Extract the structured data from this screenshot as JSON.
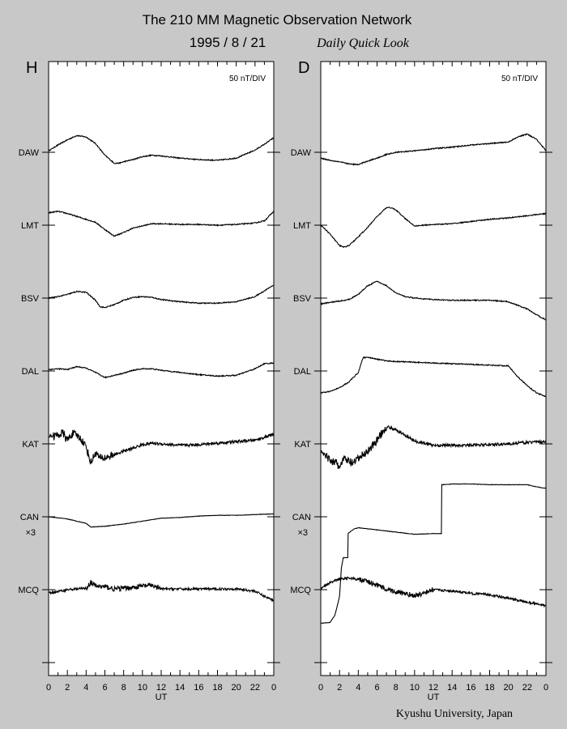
{
  "title": "The 210 MM Magnetic Observation Network",
  "date": "1995 /  8 / 21",
  "subtitle": "Daily Quick Look",
  "footer": "Kyushu University, Japan",
  "colors": {
    "background": "#c8c8c8",
    "panel": "#ffffff",
    "trace": "#000000"
  },
  "chart_data": [
    {
      "type": "line",
      "panel": "H",
      "scale_label": "50 nT/DIV",
      "xlabel": "UT",
      "x_ticks": [
        "0",
        "2",
        "4",
        "6",
        "8",
        "10",
        "12",
        "14",
        "16",
        "18",
        "20",
        "22",
        "0"
      ],
      "xlim": [
        0,
        24
      ],
      "grid": false,
      "stations": [
        {
          "name": "DAW",
          "note": "",
          "x": [
            0,
            1,
            2,
            3,
            4,
            5,
            6,
            7,
            7.5,
            8,
            9,
            10,
            11,
            12,
            14,
            16,
            18,
            20,
            22,
            23,
            24
          ],
          "y": [
            0.2,
            1.0,
            1.7,
            2.3,
            2.1,
            1.2,
            -0.4,
            -1.5,
            -1.5,
            -1.3,
            -1.0,
            -0.6,
            -0.4,
            -0.5,
            -0.8,
            -1.0,
            -1.1,
            -0.8,
            0.3,
            1.1,
            2.0
          ]
        },
        {
          "name": "LMT",
          "note": "",
          "x": [
            0,
            1,
            2,
            3,
            4,
            5,
            6,
            7,
            8,
            9,
            10,
            11,
            12,
            14,
            16,
            18,
            20,
            22,
            23,
            24
          ],
          "y": [
            1.7,
            1.9,
            1.6,
            1.2,
            0.8,
            0.4,
            -0.6,
            -1.5,
            -1.0,
            -0.4,
            -0.1,
            0.2,
            0.2,
            0.1,
            0.1,
            0.0,
            0.1,
            0.3,
            0.6,
            1.9
          ]
        },
        {
          "name": "BSV",
          "note": "",
          "x": [
            0,
            1,
            2,
            3,
            4,
            5,
            5.5,
            6,
            7,
            8,
            9,
            10,
            11,
            12,
            14,
            16,
            18,
            20,
            22,
            23,
            24
          ],
          "y": [
            0.0,
            0.2,
            0.5,
            0.9,
            0.8,
            -0.3,
            -1.2,
            -1.3,
            -0.9,
            -0.3,
            0.1,
            0.2,
            0.1,
            -0.2,
            -0.5,
            -0.7,
            -0.7,
            -0.5,
            0.2,
            1.0,
            1.8
          ]
        },
        {
          "name": "DAL",
          "note": "",
          "x": [
            0,
            1,
            2,
            3,
            4,
            5,
            6,
            7,
            8,
            9,
            10,
            11,
            12,
            14,
            16,
            18,
            20,
            22,
            23,
            24
          ],
          "y": [
            0.2,
            0.3,
            0.2,
            0.6,
            0.4,
            -0.2,
            -0.9,
            -0.6,
            -0.3,
            0.1,
            0.3,
            0.3,
            0.1,
            -0.2,
            -0.5,
            -0.7,
            -0.6,
            0.3,
            1.0,
            1.1
          ]
        },
        {
          "name": "KAT",
          "note": "",
          "x": [
            0,
            1,
            1.5,
            2,
            2.5,
            3,
            3.5,
            4,
            4.5,
            5,
            5.5,
            6,
            7,
            8,
            9,
            10,
            11,
            12,
            14,
            16,
            18,
            20,
            22,
            23,
            24
          ],
          "y": [
            1.0,
            1.2,
            1.5,
            0.5,
            1.4,
            1.2,
            0.6,
            -0.4,
            -2.6,
            -1.2,
            -2.0,
            -1.9,
            -1.5,
            -1.0,
            -0.6,
            -0.1,
            0.1,
            0.0,
            -0.2,
            -0.1,
            0.1,
            0.3,
            0.5,
            0.9,
            1.3
          ]
        },
        {
          "name": "CAN",
          "note": "×3",
          "x": [
            0,
            2,
            4,
            4.5,
            6,
            8,
            10,
            12,
            14,
            16,
            18,
            20,
            22,
            24
          ],
          "y": [
            0.0,
            -0.3,
            -0.9,
            -1.4,
            -1.3,
            -1.0,
            -0.6,
            -0.2,
            -0.1,
            0.1,
            0.2,
            0.2,
            0.3,
            0.4
          ]
        },
        {
          "name": "MCQ",
          "note": "",
          "x": [
            0,
            2,
            4,
            4.5,
            5,
            6,
            7,
            8,
            9,
            10,
            11,
            12,
            14,
            16,
            18,
            20,
            22,
            23,
            24
          ],
          "y": [
            -0.5,
            0.0,
            0.2,
            1.0,
            0.5,
            0.4,
            0.1,
            0.2,
            0.3,
            0.5,
            0.6,
            0.1,
            0.1,
            0.1,
            0.1,
            0.1,
            -0.2,
            -0.9,
            -1.5
          ]
        }
      ]
    },
    {
      "type": "line",
      "panel": "D",
      "scale_label": "50 nT/DIV",
      "xlabel": "UT",
      "x_ticks": [
        "0",
        "2",
        "4",
        "6",
        "8",
        "10",
        "12",
        "14",
        "16",
        "18",
        "20",
        "22",
        "0"
      ],
      "xlim": [
        0,
        24
      ],
      "grid": false,
      "stations": [
        {
          "name": "DAW",
          "note": "",
          "x": [
            0,
            1,
            2,
            3,
            4,
            5,
            6,
            7,
            8,
            9,
            10,
            12,
            14,
            16,
            18,
            20,
            21,
            22,
            23,
            24
          ],
          "y": [
            -0.8,
            -1.1,
            -1.3,
            -1.6,
            -1.7,
            -1.2,
            -0.8,
            -0.3,
            0.0,
            0.1,
            0.2,
            0.5,
            0.7,
            1.0,
            1.2,
            1.4,
            2.1,
            2.5,
            1.8,
            0.2
          ]
        },
        {
          "name": "LMT",
          "note": "",
          "x": [
            0,
            1,
            2,
            2.5,
            3,
            4,
            5,
            6,
            7,
            7.5,
            8,
            9,
            10,
            11,
            12,
            14,
            16,
            18,
            20,
            22,
            24
          ],
          "y": [
            0.0,
            -1.2,
            -2.8,
            -3.0,
            -2.8,
            -1.6,
            -0.3,
            1.2,
            2.4,
            2.4,
            2.1,
            0.9,
            -0.1,
            0.0,
            0.1,
            0.2,
            0.5,
            0.8,
            1.0,
            1.3,
            1.6
          ]
        },
        {
          "name": "BSV",
          "note": "",
          "x": [
            0,
            1,
            2,
            3,
            4,
            5,
            6,
            7,
            8,
            9,
            10,
            12,
            14,
            16,
            18,
            20,
            21,
            22,
            23,
            24
          ],
          "y": [
            -0.8,
            -0.6,
            -0.4,
            -0.2,
            0.5,
            1.7,
            2.3,
            1.7,
            0.7,
            0.2,
            0.0,
            -0.2,
            -0.3,
            -0.3,
            -0.3,
            -0.5,
            -1.0,
            -1.5,
            -2.3,
            -3.0
          ]
        },
        {
          "name": "DAL",
          "note": "",
          "x": [
            0,
            1,
            2,
            3,
            4,
            4.5,
            5,
            6,
            7,
            8,
            10,
            12,
            14,
            16,
            18,
            20,
            21,
            22,
            23,
            24
          ],
          "y": [
            -3.0,
            -2.8,
            -2.3,
            -1.5,
            -0.2,
            1.8,
            1.9,
            1.6,
            1.4,
            1.3,
            1.2,
            1.1,
            1.0,
            0.9,
            0.8,
            0.7,
            -0.8,
            -2.0,
            -3.0,
            -3.5
          ]
        },
        {
          "name": "KAT",
          "note": "",
          "x": [
            0,
            0.5,
            1,
            1.5,
            2,
            2.5,
            3,
            3.5,
            4,
            5,
            6,
            7,
            8,
            9,
            10,
            12,
            14,
            16,
            18,
            20,
            22,
            24
          ],
          "y": [
            -1.0,
            -1.6,
            -2.2,
            -2.5,
            -3.2,
            -2.0,
            -2.4,
            -2.7,
            -2.0,
            -1.0,
            0.5,
            2.4,
            1.9,
            1.2,
            0.4,
            -0.2,
            -0.2,
            -0.2,
            -0.1,
            0.0,
            0.2,
            0.3
          ]
        },
        {
          "name": "CAN",
          "note": "×3",
          "x": [
            0,
            1,
            1.5,
            2,
            2.2,
            2.4,
            2.4,
            2.9,
            2.9,
            3.5,
            4,
            6,
            8,
            10,
            12,
            12.9,
            12.9,
            14,
            16,
            18,
            20,
            22,
            23,
            24
          ],
          "y": [
            -14.6,
            -14.5,
            -13.5,
            -11.0,
            -7.0,
            -5.6,
            -5.6,
            -5.6,
            -2.3,
            -1.7,
            -1.5,
            -1.8,
            -2.1,
            -2.4,
            -2.3,
            -2.3,
            4.4,
            4.5,
            4.5,
            4.4,
            4.4,
            4.4,
            4.1,
            3.9
          ]
        },
        {
          "name": "MCQ",
          "note": "",
          "x": [
            0,
            1,
            2,
            3,
            4,
            5,
            6,
            7,
            8,
            9,
            10,
            11,
            12,
            14,
            16,
            18,
            20,
            22,
            24
          ],
          "y": [
            0.2,
            1.0,
            1.5,
            1.6,
            1.4,
            1.1,
            0.6,
            0.1,
            -0.3,
            -0.6,
            -0.8,
            -0.5,
            0.0,
            -0.2,
            -0.5,
            -0.7,
            -1.2,
            -1.7,
            -2.2
          ]
        }
      ]
    }
  ]
}
